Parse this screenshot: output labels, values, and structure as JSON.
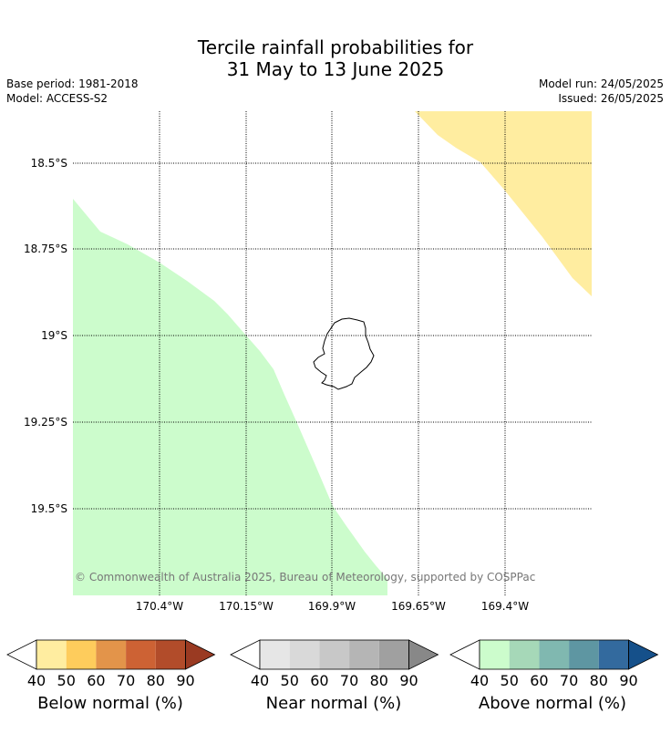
{
  "title": {
    "line1": "Tercile rainfall probabilities for",
    "line2": "31 May to 13 June 2025"
  },
  "meta": {
    "base_period": "Base period: 1981-2018",
    "model": "Model: ACCESS-S2",
    "model_run": "Model run: 24/05/2025",
    "issued": "Issued: 26/05/2025"
  },
  "map": {
    "lat_labels": [
      "18.5°S",
      "18.75°S",
      "19°S",
      "19.25°S",
      "19.5°S"
    ],
    "lon_labels": [
      "170.4°W",
      "170.15°W",
      "169.9°W",
      "169.65°W",
      "169.4°W"
    ],
    "copyright": "© Commonwealth of Australia 2025, Bureau of Meteorology, supported by COSPPac",
    "region_colors": {
      "above_normal_50": "#ccfccc",
      "below_normal_40": "#ffeda0",
      "coastline": "#000000",
      "gridline": "#000000"
    }
  },
  "colorbars": [
    {
      "label": "Below normal (%)",
      "ticks": [
        "40",
        "50",
        "60",
        "70",
        "80",
        "90"
      ],
      "colors": [
        "#ffeda0",
        "#fecc5c",
        "#e3944a",
        "#cd6234",
        "#b24c2a",
        "#9a3a22"
      ]
    },
    {
      "label": "Near normal (%)",
      "ticks": [
        "40",
        "50",
        "60",
        "70",
        "80",
        "90"
      ],
      "colors": [
        "#e6e6e6",
        "#d9d9d9",
        "#c8c8c8",
        "#b5b5b5",
        "#a0a0a0",
        "#888888"
      ]
    },
    {
      "label": "Above normal (%)",
      "ticks": [
        "40",
        "50",
        "60",
        "70",
        "80",
        "90"
      ],
      "colors": [
        "#ccfccc",
        "#a6d8b8",
        "#80b8b0",
        "#5e96a2",
        "#336a9e",
        "#15508a"
      ]
    }
  ]
}
